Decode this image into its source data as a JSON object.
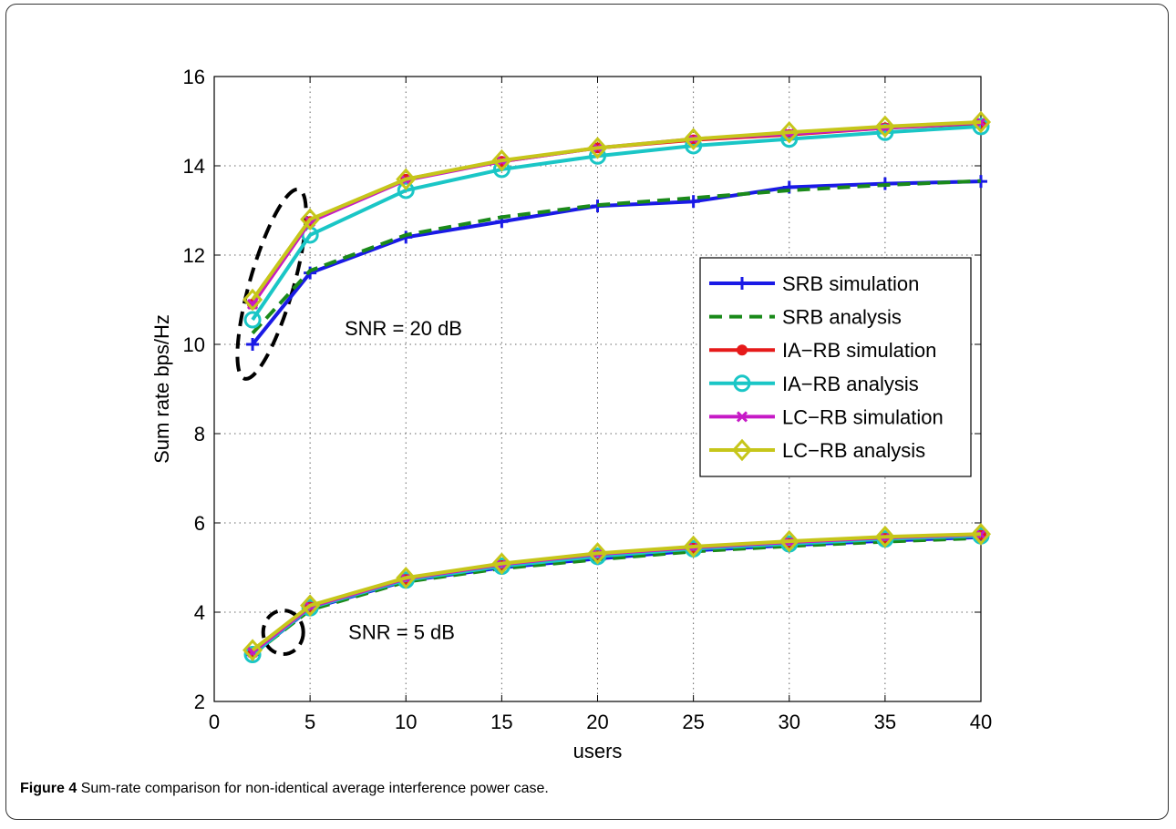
{
  "caption": {
    "figure_label": "Figure 4",
    "text": "Sum-rate comparison for non-identical average interference power case."
  },
  "chart_data": {
    "type": "line",
    "title": "",
    "xlabel": "users",
    "ylabel": "Sum rate  bps/Hz",
    "xlim": [
      0,
      40
    ],
    "ylim": [
      2,
      16
    ],
    "xticks": [
      0,
      5,
      10,
      15,
      20,
      25,
      30,
      35,
      40
    ],
    "yticks": [
      2,
      4,
      6,
      8,
      10,
      12,
      14,
      16
    ],
    "grid": true,
    "legend_position": "right",
    "x": [
      2,
      5,
      10,
      15,
      20,
      25,
      30,
      35,
      40
    ],
    "annotations": [
      {
        "text": "SNR = 20 dB",
        "x": 6.8,
        "y": 10.2
      },
      {
        "text": "SNR = 5 dB",
        "x": 7.0,
        "y": 3.4
      }
    ],
    "series": [
      {
        "name": "SRB simulation",
        "group": "SNR = 20 dB",
        "color": "#1a1ae6",
        "style": "solid",
        "marker": "plus",
        "values": [
          10.0,
          11.6,
          12.4,
          12.75,
          13.1,
          13.2,
          13.52,
          13.6,
          13.65
        ]
      },
      {
        "name": "SRB analysis",
        "group": "SNR = 20 dB",
        "color": "#1a8a1a",
        "style": "dashed",
        "marker": "none",
        "values": [
          10.25,
          11.65,
          12.45,
          12.85,
          13.12,
          13.28,
          13.45,
          13.57,
          13.66
        ]
      },
      {
        "name": "IA−RB simulation",
        "group": "SNR = 20 dB",
        "color": "#e61a1a",
        "style": "solid",
        "marker": "dot",
        "values": [
          10.9,
          12.75,
          13.7,
          14.1,
          14.4,
          14.58,
          14.7,
          14.85,
          14.95
        ]
      },
      {
        "name": "IA−RB analysis",
        "group": "SNR = 20 dB",
        "color": "#1ac6c6",
        "style": "solid",
        "marker": "circle",
        "values": [
          10.55,
          12.45,
          13.45,
          13.92,
          14.22,
          14.45,
          14.6,
          14.75,
          14.88
        ]
      },
      {
        "name": "LC−RB simulation",
        "group": "SNR = 20 dB",
        "color": "#c61ac6",
        "style": "solid",
        "marker": "cross",
        "values": [
          10.9,
          12.75,
          13.68,
          14.1,
          14.4,
          14.6,
          14.72,
          14.85,
          14.97
        ]
      },
      {
        "name": "LC−RB analysis",
        "group": "SNR = 20 dB",
        "color": "#c6c61a",
        "style": "solid",
        "marker": "diamond",
        "values": [
          11.0,
          12.8,
          13.7,
          14.12,
          14.4,
          14.6,
          14.75,
          14.88,
          14.98
        ]
      },
      {
        "name": "SRB simulation",
        "group": "SNR = 5 dB",
        "color": "#1a1ae6",
        "style": "solid",
        "marker": "plus",
        "values": [
          3.05,
          4.08,
          4.7,
          5.0,
          5.2,
          5.38,
          5.5,
          5.6,
          5.68
        ]
      },
      {
        "name": "SRB analysis",
        "group": "SNR = 5 dB",
        "color": "#1a8a1a",
        "style": "dashed",
        "marker": "none",
        "values": [
          3.05,
          4.05,
          4.68,
          4.98,
          5.18,
          5.36,
          5.48,
          5.58,
          5.66
        ]
      },
      {
        "name": "IA−RB simulation",
        "group": "SNR = 5 dB",
        "color": "#e61a1a",
        "style": "solid",
        "marker": "dot",
        "values": [
          3.1,
          4.12,
          4.75,
          5.07,
          5.3,
          5.45,
          5.57,
          5.67,
          5.74
        ]
      },
      {
        "name": "IA−RB analysis",
        "group": "SNR = 5 dB",
        "color": "#1ac6c6",
        "style": "solid",
        "marker": "circle",
        "values": [
          3.05,
          4.1,
          4.72,
          5.03,
          5.25,
          5.42,
          5.53,
          5.64,
          5.71
        ]
      },
      {
        "name": "LC−RB simulation",
        "group": "SNR = 5 dB",
        "color": "#c61ac6",
        "style": "solid",
        "marker": "cross",
        "values": [
          3.1,
          4.12,
          4.75,
          5.07,
          5.3,
          5.45,
          5.57,
          5.67,
          5.74
        ]
      },
      {
        "name": "LC−RB analysis",
        "group": "SNR = 5 dB",
        "color": "#c6c61a",
        "style": "solid",
        "marker": "diamond",
        "values": [
          3.15,
          4.15,
          4.77,
          5.09,
          5.32,
          5.47,
          5.59,
          5.69,
          5.75
        ]
      }
    ],
    "legend": [
      {
        "label": "SRB simulation",
        "color": "#1a1ae6",
        "style": "solid",
        "marker": "plus"
      },
      {
        "label": "SRB analysis",
        "color": "#1a8a1a",
        "style": "dashed",
        "marker": "none"
      },
      {
        "label": "IA−RB simulation",
        "color": "#e61a1a",
        "style": "solid",
        "marker": "dot"
      },
      {
        "label": "IA−RB analysis",
        "color": "#1ac6c6",
        "style": "solid",
        "marker": "circle"
      },
      {
        "label": "LC−RB simulation",
        "color": "#c61ac6",
        "style": "solid",
        "marker": "cross"
      },
      {
        "label": "LC−RB analysis",
        "color": "#c6c61a",
        "style": "solid",
        "marker": "diamond"
      }
    ]
  }
}
